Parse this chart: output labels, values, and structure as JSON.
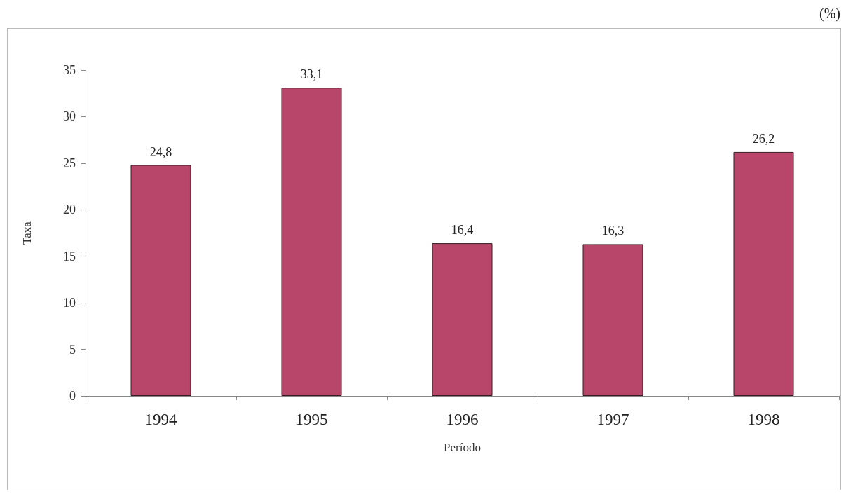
{
  "chart_data": {
    "type": "bar",
    "xlabel": "Período",
    "ylabel": "Taxa",
    "annotations": [
      "(%)"
    ],
    "categories": [
      "1994",
      "1995",
      "1996",
      "1997",
      "1998"
    ],
    "values": [
      24.8,
      33.1,
      16.4,
      16.3,
      26.2
    ],
    "value_labels": [
      "24,8",
      "33,1",
      "16,4",
      "16,3",
      "26,2"
    ],
    "color": "#b8456a",
    "ylim": [
      0,
      35
    ],
    "yticks": [
      0,
      5,
      10,
      15,
      20,
      25,
      30,
      35
    ],
    "grid": false
  }
}
